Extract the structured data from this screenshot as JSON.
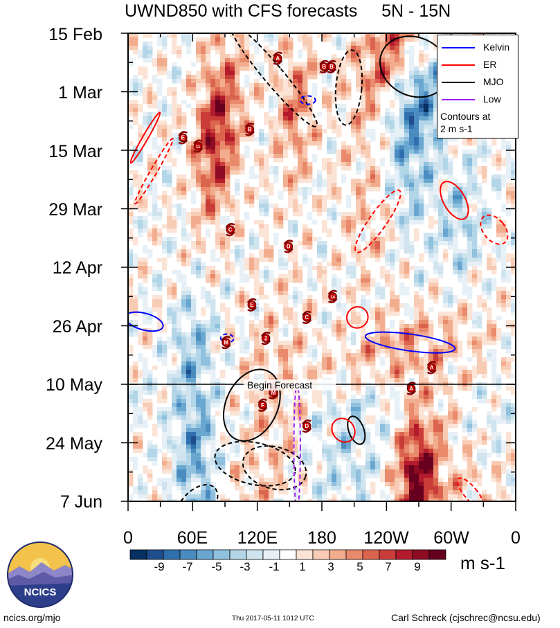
{
  "title": {
    "left": "UWND850 with CFS forecasts",
    "right": "5N - 15N"
  },
  "chart_data": {
    "type": "heatmap",
    "title": "UWND850 with CFS forecasts",
    "region": "5N - 15N",
    "y_ticks": [
      "15 Feb",
      "1 Mar",
      "15 Mar",
      "29 Mar",
      "12 Apr",
      "26 Apr",
      "10 May",
      "24 May",
      "7 Jun"
    ],
    "x_ticks": [
      "0",
      "60E",
      "120E",
      "180",
      "120W",
      "60W",
      "0"
    ],
    "x_range": [
      0,
      360
    ],
    "y_range": [
      "15 Feb",
      "7 Jun"
    ],
    "colorbar": {
      "ticks": [
        "-9",
        "-7",
        "-5",
        "-3",
        "-1",
        "1",
        "3",
        "5",
        "7",
        "9"
      ],
      "levels": [
        -10,
        -9,
        -8,
        -7,
        -6,
        -5,
        -4,
        -3,
        -2,
        -1,
        1,
        2,
        3,
        4,
        5,
        6,
        7,
        8,
        9,
        10
      ],
      "colors": [
        "#053061",
        "#1f4e8c",
        "#2f6fae",
        "#4a8cc0",
        "#6aa7d0",
        "#8fc0de",
        "#b3d5e8",
        "#cfe4ef",
        "#e6f0f6",
        "#ffffff",
        "#fbe3d6",
        "#f8cbb4",
        "#f2ad8e",
        "#e98a6c",
        "#db644e",
        "#c93c38",
        "#b31b2c",
        "#8e0b24",
        "#67001f"
      ],
      "units": "m s-1"
    },
    "forecast_line": {
      "date": "10 May",
      "label": "Begin Forecast"
    },
    "legend": [
      {
        "name": "Kelvin",
        "color": "#0000ff"
      },
      {
        "name": "ER",
        "color": "#ff0000"
      },
      {
        "name": "MJO",
        "color": "#000000"
      },
      {
        "name": "Low",
        "color": "#a020f0"
      }
    ],
    "legend_note": [
      "Contours at",
      "2 m s-1"
    ],
    "storms": [
      {
        "lon": 139,
        "day": 6,
        "label": "A"
      },
      {
        "lon": 182,
        "day": 8,
        "label": "B"
      },
      {
        "lon": 189,
        "day": 8,
        "label": "B"
      },
      {
        "lon": 51,
        "day": 25,
        "label": "E"
      },
      {
        "lon": 113,
        "day": 23,
        "label": "B"
      },
      {
        "lon": 65,
        "day": 27,
        "label": "11"
      },
      {
        "lon": 95,
        "day": 47,
        "label": "C"
      },
      {
        "lon": 149,
        "day": 51,
        "label": "D"
      },
      {
        "lon": 115,
        "day": 65,
        "label": "E"
      },
      {
        "lon": 190,
        "day": 63,
        "label": "14"
      },
      {
        "lon": 166,
        "day": 68,
        "label": "C"
      },
      {
        "lon": 128,
        "day": 73,
        "label": "2"
      },
      {
        "lon": 91,
        "day": 74,
        "label": "M"
      },
      {
        "lon": 282,
        "day": 80,
        "label": "A"
      },
      {
        "lon": 135,
        "day": 86,
        "label": "M"
      },
      {
        "lon": 125,
        "day": 89,
        "label": "F"
      },
      {
        "lon": 166,
        "day": 94,
        "label": "D"
      },
      {
        "lon": 263,
        "day": 85,
        "label": "A"
      }
    ]
  },
  "units_label": "m s-1",
  "logo_text": "NCICS",
  "footer": {
    "left": "ncics.org/mjo",
    "middle": "Thu 2017-05-11 1012 UTC",
    "right": "Carl Schreck (cjschrec@ncsu.edu)"
  }
}
